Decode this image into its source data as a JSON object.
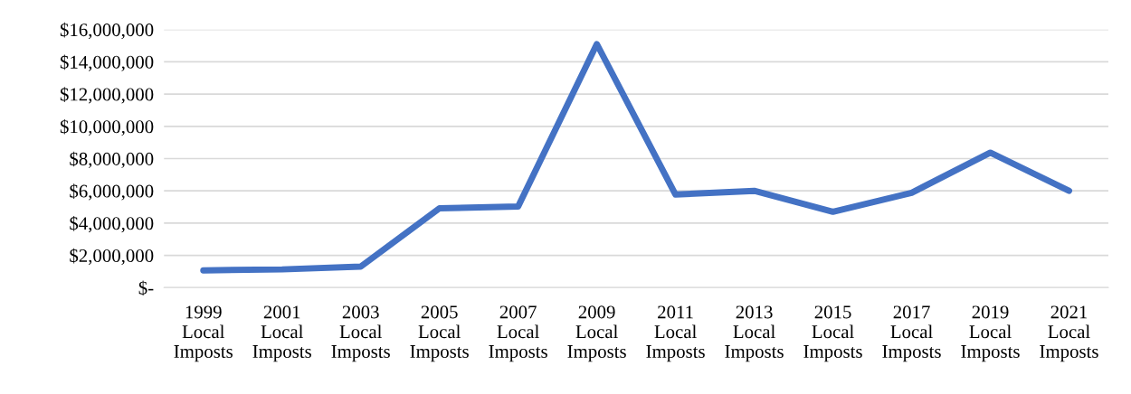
{
  "chart_data": {
    "type": "line",
    "categories": [
      "1999\nLocal\nImposts",
      "2001\nLocal\nImposts",
      "2003\nLocal\nImposts",
      "2005\nLocal\nImposts",
      "2007\nLocal\nImposts",
      "2009\nLocal\nImposts",
      "2011\nLocal\nImposts",
      "2013\nLocal\nImposts",
      "2015\nLocal\nImposts",
      "2017\nLocal\nImposts",
      "2019\nLocal\nImposts",
      "2021\nLocal\nImposts"
    ],
    "series": [
      {
        "color": "#4472c4",
        "values": [
          1070000,
          1130000,
          1300000,
          4920000,
          5030000,
          15100000,
          5770000,
          6000000,
          4700000,
          5880000,
          8370000,
          6000000
        ]
      }
    ],
    "ylim": [
      0,
      16000000
    ],
    "yticks": [
      {
        "value": 0,
        "label": "$-"
      },
      {
        "value": 2000000,
        "label": "$2,000,000"
      },
      {
        "value": 4000000,
        "label": "$4,000,000"
      },
      {
        "value": 6000000,
        "label": "$6,000,000"
      },
      {
        "value": 8000000,
        "label": "$8,000,000"
      },
      {
        "value": 10000000,
        "label": "$10,000,000"
      },
      {
        "value": 12000000,
        "label": "$12,000,000"
      },
      {
        "value": 14000000,
        "label": "$14,000,000"
      },
      {
        "value": 16000000,
        "label": "$16,000,000"
      }
    ],
    "grid": "y",
    "line_style": "solid",
    "marker": "none"
  }
}
